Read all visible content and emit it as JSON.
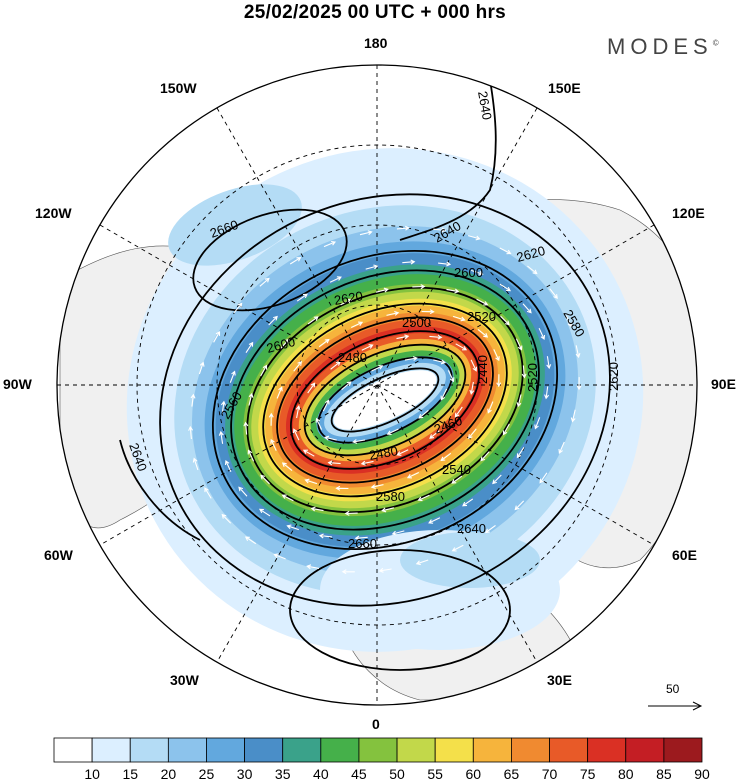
{
  "header": {
    "title": "25/02/2025  00 UTC  + 000 hrs",
    "logo": "MODES",
    "logo_mark": "©"
  },
  "map": {
    "projection": "north polar stereographic",
    "longitude_labels": {
      "top": "180",
      "top_right": "150E",
      "upper_right": "120E",
      "right": "90E",
      "lower_right": "60E",
      "bottom_right": "30E",
      "bottom": "0",
      "bottom_left": "30W",
      "lower_left": "60W",
      "left": "90W",
      "upper_left": "120W",
      "top_left": "150W"
    },
    "contour_labels": [
      "2640",
      "2660",
      "2640",
      "2620",
      "2600",
      "2580",
      "2620",
      "2600",
      "2500",
      "2520",
      "2480",
      "2440",
      "2460",
      "2520",
      "2480",
      "2540",
      "2580",
      "2640",
      "2660",
      "2640",
      "2560",
      "2620"
    ],
    "vector_reference": "50"
  },
  "colorbar": {
    "labels": [
      "10",
      "15",
      "20",
      "25",
      "30",
      "35",
      "40",
      "45",
      "50",
      "55",
      "60",
      "65",
      "70",
      "75",
      "80",
      "85",
      "90"
    ],
    "colors": [
      "#ffffff",
      "#dcefff",
      "#b4dcf5",
      "#8cc3ec",
      "#62a8de",
      "#4a8ec8",
      "#3aa28a",
      "#45b04a",
      "#84c23e",
      "#c2d84a",
      "#f4e04a",
      "#f6b43c",
      "#f08a30",
      "#e85a28",
      "#da3024",
      "#c41e24",
      "#9c1a1e"
    ]
  },
  "colors": {
    "land": "#f2f2f2",
    "ocean": "#ffffff",
    "grid": "#000000",
    "contour": "#000000",
    "vector": "#ffffff"
  }
}
